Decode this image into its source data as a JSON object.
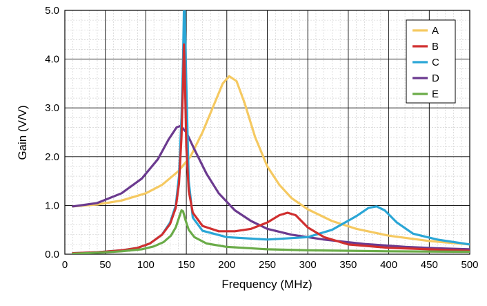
{
  "chart_data": {
    "type": "line",
    "title": "",
    "xlabel": "Frequency (MHz)",
    "ylabel": "Gain (V/V)",
    "xlim": [
      0,
      500
    ],
    "ylim": [
      0,
      5
    ],
    "x_ticks": [
      0,
      50,
      100,
      150,
      200,
      250,
      300,
      350,
      400,
      450,
      500
    ],
    "y_ticks": [
      0,
      1,
      2,
      3,
      4,
      5
    ],
    "y_tick_labels": [
      "0.0",
      "1.0",
      "2.0",
      "3.0",
      "4.0",
      "5.0"
    ],
    "grid": true,
    "minor_grid": true,
    "legend_position": "top-right",
    "series": [
      {
        "name": "A",
        "color": "#f5c961",
        "points": [
          [
            10,
            0.98
          ],
          [
            40,
            1.02
          ],
          [
            70,
            1.1
          ],
          [
            100,
            1.25
          ],
          [
            120,
            1.42
          ],
          [
            140,
            1.7
          ],
          [
            155,
            2.0
          ],
          [
            170,
            2.5
          ],
          [
            185,
            3.1
          ],
          [
            195,
            3.5
          ],
          [
            203,
            3.65
          ],
          [
            212,
            3.55
          ],
          [
            222,
            3.1
          ],
          [
            235,
            2.4
          ],
          [
            250,
            1.8
          ],
          [
            265,
            1.42
          ],
          [
            280,
            1.15
          ],
          [
            300,
            0.92
          ],
          [
            330,
            0.68
          ],
          [
            360,
            0.52
          ],
          [
            400,
            0.38
          ],
          [
            450,
            0.27
          ],
          [
            500,
            0.2
          ]
        ]
      },
      {
        "name": "B",
        "color": "#d02f2f",
        "points": [
          [
            10,
            0.02
          ],
          [
            40,
            0.04
          ],
          [
            70,
            0.08
          ],
          [
            90,
            0.13
          ],
          [
            105,
            0.22
          ],
          [
            120,
            0.4
          ],
          [
            130,
            0.62
          ],
          [
            137,
            0.95
          ],
          [
            141,
            1.45
          ],
          [
            144,
            2.4
          ],
          [
            146,
            3.5
          ],
          [
            147,
            4.3
          ],
          [
            148,
            3.8
          ],
          [
            150,
            2.2
          ],
          [
            153,
            1.3
          ],
          [
            158,
            0.85
          ],
          [
            170,
            0.58
          ],
          [
            190,
            0.47
          ],
          [
            210,
            0.47
          ],
          [
            230,
            0.52
          ],
          [
            250,
            0.65
          ],
          [
            265,
            0.8
          ],
          [
            275,
            0.85
          ],
          [
            285,
            0.8
          ],
          [
            300,
            0.55
          ],
          [
            320,
            0.35
          ],
          [
            350,
            0.2
          ],
          [
            400,
            0.13
          ],
          [
            450,
            0.1
          ],
          [
            500,
            0.07
          ]
        ]
      },
      {
        "name": "C",
        "color": "#2aa6d6",
        "points": [
          [
            10,
            0.02
          ],
          [
            40,
            0.04
          ],
          [
            70,
            0.08
          ],
          [
            90,
            0.13
          ],
          [
            105,
            0.22
          ],
          [
            120,
            0.4
          ],
          [
            130,
            0.65
          ],
          [
            137,
            1.0
          ],
          [
            141,
            1.6
          ],
          [
            144,
            2.8
          ],
          [
            146,
            4.0
          ],
          [
            147,
            5.0
          ],
          [
            148,
            5.0
          ],
          [
            150,
            3.5
          ],
          [
            153,
            1.5
          ],
          [
            158,
            0.75
          ],
          [
            170,
            0.48
          ],
          [
            200,
            0.35
          ],
          [
            250,
            0.3
          ],
          [
            300,
            0.35
          ],
          [
            330,
            0.5
          ],
          [
            360,
            0.78
          ],
          [
            375,
            0.95
          ],
          [
            385,
            0.98
          ],
          [
            395,
            0.9
          ],
          [
            410,
            0.65
          ],
          [
            430,
            0.42
          ],
          [
            460,
            0.3
          ],
          [
            500,
            0.2
          ]
        ]
      },
      {
        "name": "D",
        "color": "#6b3a8f",
        "points": [
          [
            10,
            0.98
          ],
          [
            40,
            1.05
          ],
          [
            70,
            1.25
          ],
          [
            95,
            1.55
          ],
          [
            115,
            1.95
          ],
          [
            128,
            2.35
          ],
          [
            138,
            2.6
          ],
          [
            143,
            2.63
          ],
          [
            150,
            2.5
          ],
          [
            160,
            2.15
          ],
          [
            175,
            1.65
          ],
          [
            190,
            1.25
          ],
          [
            210,
            0.9
          ],
          [
            230,
            0.68
          ],
          [
            250,
            0.52
          ],
          [
            280,
            0.4
          ],
          [
            320,
            0.3
          ],
          [
            370,
            0.21
          ],
          [
            420,
            0.15
          ],
          [
            460,
            0.12
          ],
          [
            500,
            0.1
          ]
        ]
      },
      {
        "name": "E",
        "color": "#6aab48",
        "points": [
          [
            10,
            0.01
          ],
          [
            40,
            0.03
          ],
          [
            70,
            0.06
          ],
          [
            95,
            0.1
          ],
          [
            110,
            0.16
          ],
          [
            122,
            0.25
          ],
          [
            131,
            0.38
          ],
          [
            137,
            0.55
          ],
          [
            141,
            0.75
          ],
          [
            144,
            0.9
          ],
          [
            146,
            0.88
          ],
          [
            149,
            0.7
          ],
          [
            153,
            0.5
          ],
          [
            160,
            0.35
          ],
          [
            175,
            0.22
          ],
          [
            200,
            0.15
          ],
          [
            250,
            0.1
          ],
          [
            300,
            0.08
          ],
          [
            400,
            0.06
          ],
          [
            500,
            0.05
          ]
        ]
      }
    ]
  }
}
